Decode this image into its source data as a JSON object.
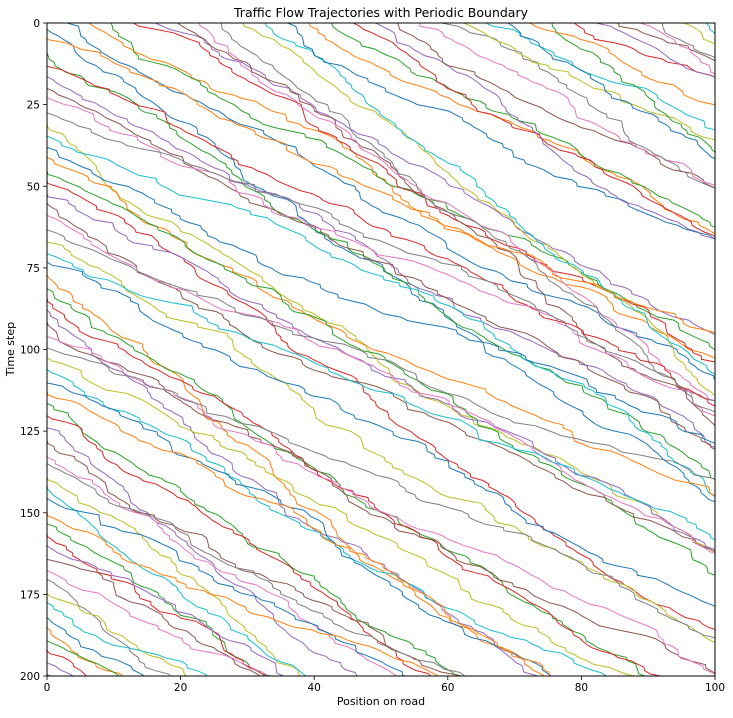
{
  "chart_data": {
    "type": "line",
    "title": "Traffic Flow Trajectories with Periodic Boundary",
    "xlabel": "Position on road",
    "ylabel": "Time step",
    "xlim": [
      0,
      100
    ],
    "ylim": [
      200,
      0
    ],
    "y_axis_inverted": true,
    "x_ticks": [
      0,
      20,
      40,
      60,
      80,
      100
    ],
    "y_ticks": [
      0,
      25,
      50,
      75,
      100,
      125,
      150,
      175,
      200
    ],
    "grid": false,
    "legend": "none",
    "road_length": 100,
    "time_steps": 200,
    "colors": [
      "#1f77b4",
      "#ff7f0e",
      "#2ca02c",
      "#d62728",
      "#9467bd",
      "#8c564b",
      "#e377c2",
      "#7f7f7f",
      "#bcbd22",
      "#17becf"
    ],
    "series_groups": [
      {
        "description_values": {
          "entry_times": [
            0,
            0,
            0,
            0,
            0,
            0,
            0,
            0,
            0,
            0
          ],
          "start_x": [
            3,
            9,
            14,
            20,
            27,
            34,
            41,
            48,
            55,
            62
          ]
        }
      },
      {
        "description_values": {
          "entry_times": [
            2,
            5,
            9,
            13,
            17,
            22,
            27,
            33,
            38,
            44
          ],
          "start_x": [
            0,
            0,
            0,
            0,
            0,
            0,
            0,
            0,
            0,
            0
          ]
        }
      }
    ],
    "approx_mean_speed": 0.55,
    "vehicle_count_visible_approx": 140
  }
}
